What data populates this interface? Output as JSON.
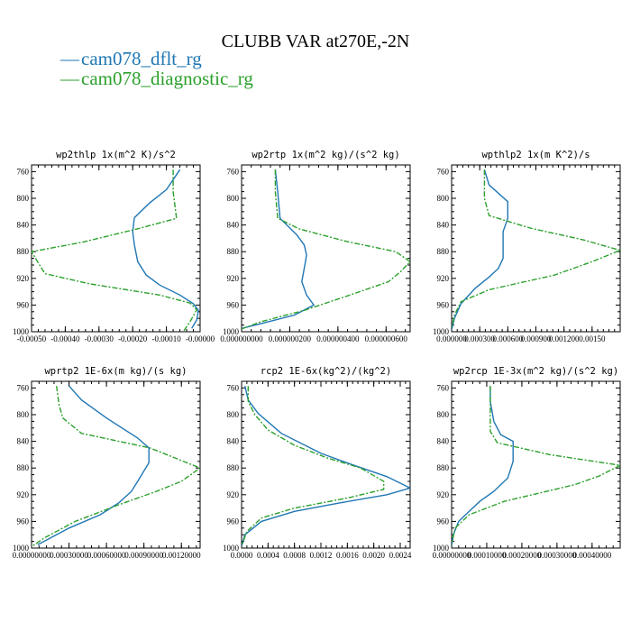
{
  "figure_title": "CLUBB VAR at270E,-2N",
  "legend": [
    {
      "label": "cam078_dflt_rg",
      "color": "#1f77b4",
      "dash": "solid"
    },
    {
      "label": "cam078_diagnostic_rg",
      "color": "#2ca02c",
      "dash": "dashdot"
    }
  ],
  "chart_data": [
    {
      "type": "line",
      "title": "wp2thlp  1x(m^2 K)/s^2",
      "xlim": [
        -0.0005,
        0.0
      ],
      "ylim": [
        1000,
        750
      ],
      "y_axis_inverted": true,
      "xticks": [
        "-0.00050",
        "-0.00040",
        "-0.00030",
        "-0.00020",
        "-0.00010",
        "-0.00000"
      ],
      "xtick_values": [
        -0.0005,
        -0.0004,
        -0.0003,
        -0.0002,
        -0.0001,
        0.0
      ],
      "yticks": [
        "760",
        "800",
        "840",
        "880",
        "920",
        "960",
        "1000"
      ],
      "ytick_values": [
        760,
        800,
        840,
        880,
        920,
        960,
        1000
      ],
      "series": [
        {
          "name": "cam078_dflt_rg",
          "points": [
            [
              -6e-05,
              757
            ],
            [
              -0.0001,
              787
            ],
            [
              -0.00015,
              807
            ],
            [
              -0.000195,
              829
            ],
            [
              -0.0002,
              850
            ],
            [
              -0.000195,
              870
            ],
            [
              -0.000185,
              895
            ],
            [
              -0.00016,
              915
            ],
            [
              -0.00012,
              930
            ],
            [
              -6e-05,
              945
            ],
            [
              -2e-05,
              958
            ],
            [
              -5e-06,
              968
            ],
            [
              -1e-05,
              982
            ],
            [
              -2.5e-05,
              995
            ]
          ]
        },
        {
          "name": "cam078_diagnostic_rg",
          "points": [
            [
              -8e-05,
              757
            ],
            [
              -8e-05,
              790
            ],
            [
              -7e-05,
              830
            ],
            [
              -0.00018,
              845
            ],
            [
              -0.00035,
              866
            ],
            [
              -0.0005,
              880
            ],
            [
              -0.00047,
              905
            ],
            [
              -0.00046,
              913
            ],
            [
              -0.00033,
              928
            ],
            [
              -0.00012,
              945
            ],
            [
              -3e-05,
              957
            ],
            [
              -1e-05,
              967
            ],
            [
              -3e-05,
              985
            ],
            [
              -5e-05,
              1000
            ]
          ]
        }
      ]
    },
    {
      "type": "line",
      "title": "wp2rtp  1x(m^2 kg)/(s^2 kg)",
      "xlim": [
        0.0,
        7e-07
      ],
      "ylim": [
        1000,
        750
      ],
      "y_axis_inverted": true,
      "xticks": [
        "0.000000000",
        "0.000000200",
        "0.000000400",
        "0.000000600"
      ],
      "xtick_values": [
        0.0,
        2e-07,
        4e-07,
        6e-07
      ],
      "yticks": [
        "760",
        "800",
        "840",
        "880",
        "920",
        "960",
        "1000"
      ],
      "ytick_values": [
        760,
        800,
        840,
        880,
        920,
        960,
        1000
      ],
      "series": [
        {
          "name": "cam078_dflt_rg",
          "points": [
            [
              1.4e-07,
              757
            ],
            [
              1.5e-07,
              790
            ],
            [
              1.6e-07,
              830
            ],
            [
              2.3e-07,
              855
            ],
            [
              2.6e-07,
              870
            ],
            [
              2.7e-07,
              885
            ],
            [
              2.6e-07,
              905
            ],
            [
              2.5e-07,
              925
            ],
            [
              2.7e-07,
              945
            ],
            [
              3e-07,
              960
            ],
            [
              2.2e-07,
              975
            ],
            [
              8e-08,
              988
            ],
            [
              0.0,
              995
            ]
          ]
        },
        {
          "name": "cam078_diagnostic_rg",
          "points": [
            [
              1.4e-07,
              757
            ],
            [
              1.4e-07,
              790
            ],
            [
              1.5e-07,
              830
            ],
            [
              2.4e-07,
              846
            ],
            [
              4.4e-07,
              865
            ],
            [
              6.4e-07,
              880
            ],
            [
              7e-07,
              895
            ],
            [
              6.6e-07,
              910
            ],
            [
              6.1e-07,
              925
            ],
            [
              4.5e-07,
              945
            ],
            [
              2.6e-07,
              968
            ],
            [
              8e-08,
              985
            ],
            [
              0.0,
              996
            ]
          ]
        }
      ]
    },
    {
      "type": "line",
      "title": "wpthlp2  1x(m K^2)/s",
      "xlim": [
        0.0,
        0.0018
      ],
      "ylim": [
        1000,
        750
      ],
      "y_axis_inverted": true,
      "xticks": [
        "0.000000",
        "0.000300",
        "0.000600",
        "0.000900",
        "0.001200",
        "0.00150"
      ],
      "xtick_values": [
        0.0,
        0.0003,
        0.0006,
        0.0009,
        0.0012,
        0.0015
      ],
      "yticks": [
        "760",
        "800",
        "840",
        "880",
        "920",
        "960",
        "1000"
      ],
      "ytick_values": [
        760,
        800,
        840,
        880,
        920,
        960,
        1000
      ],
      "series": [
        {
          "name": "cam078_dflt_rg",
          "points": [
            [
              0.00035,
              757
            ],
            [
              0.0004,
              780
            ],
            [
              0.0006,
              805
            ],
            [
              0.0006,
              830
            ],
            [
              0.00055,
              850
            ],
            [
              0.00055,
              890
            ],
            [
              0.0005,
              905
            ],
            [
              0.0004,
              918
            ],
            [
              0.00025,
              935
            ],
            [
              0.0001,
              958
            ],
            [
              3e-05,
              980
            ],
            [
              0.0,
              997
            ]
          ]
        },
        {
          "name": "cam078_diagnostic_rg",
          "points": [
            [
              0.00035,
              757
            ],
            [
              0.00035,
              780
            ],
            [
              0.00035,
              800
            ],
            [
              0.0004,
              826
            ],
            [
              0.00085,
              845
            ],
            [
              0.0014,
              862
            ],
            [
              0.0018,
              878
            ],
            [
              0.0015,
              895
            ],
            [
              0.0011,
              915
            ],
            [
              0.0004,
              937
            ],
            [
              0.0001,
              955
            ],
            [
              3e-05,
              975
            ],
            [
              0.0,
              995
            ]
          ]
        }
      ]
    },
    {
      "type": "line",
      "title": "wprtp2  1E-6x(m kg)/(s kg)",
      "xlim": [
        0.0,
        0.00135
      ],
      "ylim": [
        1000,
        750
      ],
      "y_axis_inverted": true,
      "xticks": [
        "0.00000000",
        "0.00030000",
        "0.00060000",
        "0.00090000",
        "0.00120000"
      ],
      "xtick_values": [
        0.0,
        0.0003,
        0.0006,
        0.0009,
        0.0012
      ],
      "yticks": [
        "760",
        "800",
        "840",
        "880",
        "920",
        "960",
        "1000"
      ],
      "ytick_values": [
        760,
        800,
        840,
        880,
        920,
        960,
        1000
      ],
      "series": [
        {
          "name": "cam078_dflt_rg",
          "points": [
            [
              0.0003,
              757
            ],
            [
              0.0004,
              778
            ],
            [
              0.0006,
              805
            ],
            [
              0.00085,
              835
            ],
            [
              0.00094,
              850
            ],
            [
              0.00094,
              872
            ],
            [
              0.00085,
              900
            ],
            [
              0.0008,
              915
            ],
            [
              0.0007,
              932
            ],
            [
              0.00055,
              950
            ],
            [
              0.0003,
              970
            ],
            [
              5e-05,
              995
            ]
          ]
        },
        {
          "name": "cam078_diagnostic_rg",
          "points": [
            [
              0.0002,
              757
            ],
            [
              0.00022,
              785
            ],
            [
              0.00025,
              805
            ],
            [
              0.0004,
              828
            ],
            [
              0.00095,
              850
            ],
            [
              0.00135,
              880
            ],
            [
              0.0012,
              900
            ],
            [
              0.001,
              915
            ],
            [
              0.0007,
              935
            ],
            [
              0.00035,
              960
            ],
            [
              0.0001,
              985
            ],
            [
              0.0,
              998
            ]
          ]
        }
      ]
    },
    {
      "type": "line",
      "title": "rcp2  1E-6x(kg^2)/(kg^2)",
      "xlim": [
        0.0,
        0.00255
      ],
      "ylim": [
        1000,
        750
      ],
      "y_axis_inverted": true,
      "xticks": [
        "0.0000",
        "0.0004",
        "0.0008",
        "0.0012",
        "0.0016",
        "0.0020",
        "0.0024"
      ],
      "xtick_values": [
        0.0,
        0.0004,
        0.0008,
        0.0012,
        0.0016,
        0.002,
        0.0024
      ],
      "yticks": [
        "760",
        "800",
        "840",
        "880",
        "920",
        "960",
        "1000"
      ],
      "ytick_values": [
        760,
        800,
        840,
        880,
        920,
        960,
        1000
      ],
      "series": [
        {
          "name": "cam078_dflt_rg",
          "points": [
            [
              5e-05,
              757
            ],
            [
              0.0001,
              778
            ],
            [
              0.00025,
              798
            ],
            [
              0.0006,
              828
            ],
            [
              0.0012,
              858
            ],
            [
              0.0017,
              876
            ],
            [
              0.0022,
              893
            ],
            [
              0.00255,
              910
            ],
            [
              0.0022,
              920
            ],
            [
              0.0015,
              932
            ],
            [
              0.0008,
              945
            ],
            [
              0.0003,
              960
            ],
            [
              5e-05,
              980
            ],
            [
              0.0,
              997
            ]
          ]
        },
        {
          "name": "cam078_diagnostic_rg",
          "points": [
            [
              0.0001,
              757
            ],
            [
              0.0001,
              780
            ],
            [
              0.0002,
              800
            ],
            [
              0.0004,
              823
            ],
            [
              0.0008,
              846
            ],
            [
              0.0013,
              865
            ],
            [
              0.0018,
              880
            ],
            [
              0.00215,
              900
            ],
            [
              0.00215,
              912
            ],
            [
              0.0016,
              925
            ],
            [
              0.0008,
              940
            ],
            [
              0.0003,
              955
            ],
            [
              8e-05,
              975
            ],
            [
              0.0,
              997
            ]
          ]
        }
      ]
    },
    {
      "type": "line",
      "title": "wp2rcp  1E-3x(m^2 kg)/(s^2 kg)",
      "xlim": [
        0.0,
        0.00048
      ],
      "ylim": [
        1000,
        750
      ],
      "y_axis_inverted": true,
      "xticks": [
        "0.00000000",
        "0.00010000",
        "0.00020000",
        "0.00030000",
        "0.00040000"
      ],
      "xtick_values": [
        0.0,
        0.0001,
        0.0002,
        0.0003,
        0.0004
      ],
      "yticks": [
        "760",
        "800",
        "840",
        "880",
        "920",
        "960",
        "1000"
      ],
      "ytick_values": [
        760,
        800,
        840,
        880,
        920,
        960,
        1000
      ],
      "series": [
        {
          "name": "cam078_dflt_rg",
          "points": [
            [
              0.00011,
              757
            ],
            [
              0.00011,
              780
            ],
            [
              0.00012,
              810
            ],
            [
              0.00014,
              830
            ],
            [
              0.000175,
              840
            ],
            [
              0.000175,
              870
            ],
            [
              0.00016,
              895
            ],
            [
              0.00012,
              915
            ],
            [
              8e-05,
              930
            ],
            [
              5e-05,
              945
            ],
            [
              2e-05,
              960
            ],
            [
              5e-06,
              980
            ],
            [
              0.0,
              997
            ]
          ]
        },
        {
          "name": "cam078_diagnostic_rg",
          "points": [
            [
              0.00011,
              757
            ],
            [
              0.00011,
              790
            ],
            [
              0.00011,
              825
            ],
            [
              0.00013,
              842
            ],
            [
              0.00028,
              860
            ],
            [
              0.00048,
              876
            ],
            [
              0.00042,
              892
            ],
            [
              0.00035,
              905
            ],
            [
              0.00015,
              930
            ],
            [
              5e-05,
              950
            ],
            [
              1e-05,
              970
            ],
            [
              0.0,
              995
            ]
          ]
        }
      ]
    }
  ]
}
